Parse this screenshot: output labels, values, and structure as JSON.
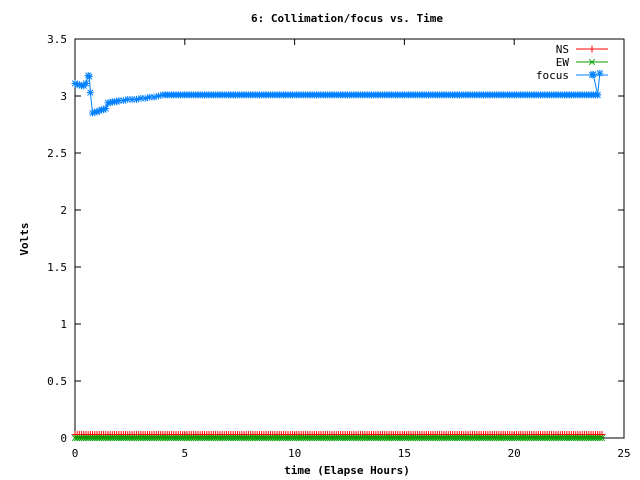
{
  "chart_data": {
    "type": "line",
    "title": "6: Collimation/focus vs. Time",
    "xlabel": "time (Elapse Hours)",
    "ylabel": "Volts",
    "xlim": [
      0,
      25
    ],
    "ylim": [
      0,
      3.5
    ],
    "xticks": [
      "0",
      "5",
      "10",
      "15",
      "20",
      "25"
    ],
    "yticks": [
      "0",
      "0.5",
      "1",
      "1.5",
      "2",
      "2.5",
      "3",
      "3.5"
    ],
    "grid": false,
    "legend_position": "top-right",
    "series": [
      {
        "name": "NS",
        "color": "#ff0000",
        "marker": "plus",
        "x_start": 0,
        "x_end": 24,
        "x_step": 0.1,
        "value": 0.03
      },
      {
        "name": "EW",
        "color": "#00a000",
        "marker": "cross",
        "x_start": 0,
        "x_end": 24,
        "x_step": 0.1,
        "value": 0.0
      },
      {
        "name": "focus",
        "color": "#0080ff",
        "marker": "star",
        "x": [
          0.0,
          0.1,
          0.2,
          0.3,
          0.4,
          0.5,
          0.6,
          0.65,
          0.7,
          0.8,
          0.9,
          1.0,
          1.1,
          1.2,
          1.3,
          1.4,
          1.5,
          1.6,
          1.7,
          1.8,
          1.9,
          2.0,
          2.2,
          2.4,
          2.6,
          2.8,
          3.0,
          3.2,
          3.4,
          3.6,
          3.8,
          4.0
        ],
        "y": [
          3.11,
          3.1,
          3.1,
          3.09,
          3.09,
          3.11,
          3.18,
          3.17,
          3.03,
          2.85,
          2.86,
          2.86,
          2.87,
          2.88,
          2.88,
          2.89,
          2.94,
          2.94,
          2.95,
          2.95,
          2.95,
          2.96,
          2.96,
          2.97,
          2.97,
          2.97,
          2.98,
          2.98,
          2.99,
          2.99,
          3.0,
          3.01
        ],
        "plateau": {
          "x_start": 4.1,
          "x_end": 23.8,
          "x_step": 0.1,
          "value": 3.01
        },
        "tail": {
          "x": [
            23.6,
            23.8,
            23.9
          ],
          "y": [
            3.19,
            3.01,
            3.2
          ]
        }
      }
    ]
  }
}
